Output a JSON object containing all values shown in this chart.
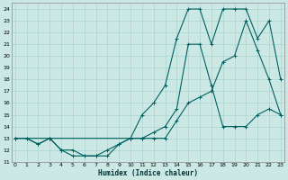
{
  "xlabel": "Humidex (Indice chaleur)",
  "bg_color": "#cce8e4",
  "grid_color": "#aad4d0",
  "line_color": "#006060",
  "line1_x": [
    0,
    1,
    2,
    3,
    4,
    5,
    6,
    7,
    8,
    9,
    10,
    11,
    12,
    13,
    14,
    15,
    16,
    17,
    18,
    19,
    20,
    21,
    22,
    23
  ],
  "line1_y": [
    13,
    13,
    12.5,
    13,
    12,
    11.5,
    11.5,
    11.5,
    11.5,
    12.5,
    13,
    13,
    13,
    13,
    14.5,
    16,
    16.5,
    17,
    19.5,
    20,
    23,
    20.5,
    18,
    15
  ],
  "line2_x": [
    0,
    1,
    2,
    3,
    4,
    5,
    6,
    7,
    8,
    9,
    10,
    11,
    12,
    13,
    14,
    15,
    16,
    17,
    18,
    19,
    20,
    21,
    22,
    23
  ],
  "line2_y": [
    13,
    13,
    12.5,
    13,
    12,
    12,
    11.5,
    11.5,
    12,
    12.5,
    13,
    13,
    13.5,
    14,
    15.5,
    21,
    21,
    17.5,
    14,
    14,
    14,
    15,
    15.5,
    15
  ],
  "line3_x": [
    0,
    3,
    10,
    11,
    12,
    13,
    14,
    15,
    16,
    17,
    18,
    19,
    20,
    21,
    22,
    23
  ],
  "line3_y": [
    13,
    13,
    13,
    15,
    16,
    17.5,
    21.5,
    24,
    24,
    21,
    24,
    24,
    24,
    21.5,
    23,
    18
  ],
  "ylim": [
    11,
    24.5
  ],
  "xlim": [
    -0.3,
    23.3
  ],
  "yticks": [
    11,
    12,
    13,
    14,
    15,
    16,
    17,
    18,
    19,
    20,
    21,
    22,
    23,
    24
  ],
  "xticks": [
    0,
    1,
    2,
    3,
    4,
    5,
    6,
    7,
    8,
    9,
    10,
    11,
    12,
    13,
    14,
    15,
    16,
    17,
    18,
    19,
    20,
    21,
    22,
    23
  ]
}
